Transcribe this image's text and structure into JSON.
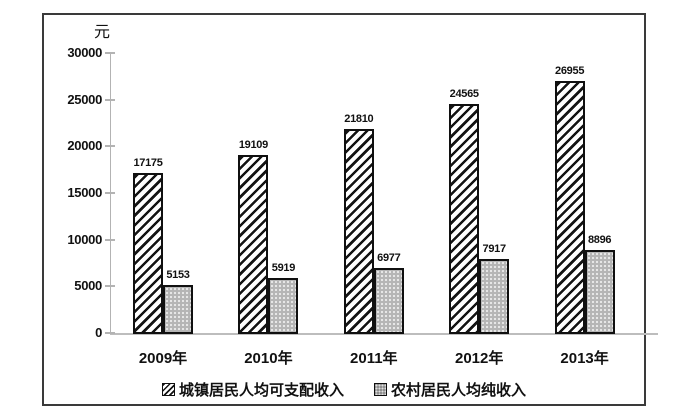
{
  "chart_data": {
    "type": "bar",
    "title": "",
    "unit_label": "元",
    "xlabel": "",
    "ylabel": "元",
    "categories": [
      "2009年",
      "2010年",
      "2011年",
      "2012年",
      "2013年"
    ],
    "series": [
      {
        "name": "城镇居民人均可支配收入",
        "pattern": "diagonal-hatch",
        "values": [
          17175,
          19109,
          21810,
          24565,
          26955
        ]
      },
      {
        "name": "农村居民人均纯收入",
        "pattern": "gray-dots",
        "values": [
          5153,
          5919,
          6977,
          7917,
          8896
        ]
      }
    ],
    "ylim": [
      0,
      30000
    ],
    "ytick_interval": 5000,
    "yticks": [
      0,
      5000,
      10000,
      15000,
      20000,
      25000,
      30000
    ],
    "grid": false,
    "data_labels": true,
    "legend_position": "bottom"
  },
  "colors": {
    "text": "#111111",
    "frame_border": "#3a3a3a",
    "bar_border": "#101010",
    "hatch_stripe": "#141414",
    "hatch_background": "#ffffff",
    "rural_fill": "#b5b5b5",
    "rural_dot": "#e8e8e8",
    "axis_line": "#b3b3b3"
  }
}
